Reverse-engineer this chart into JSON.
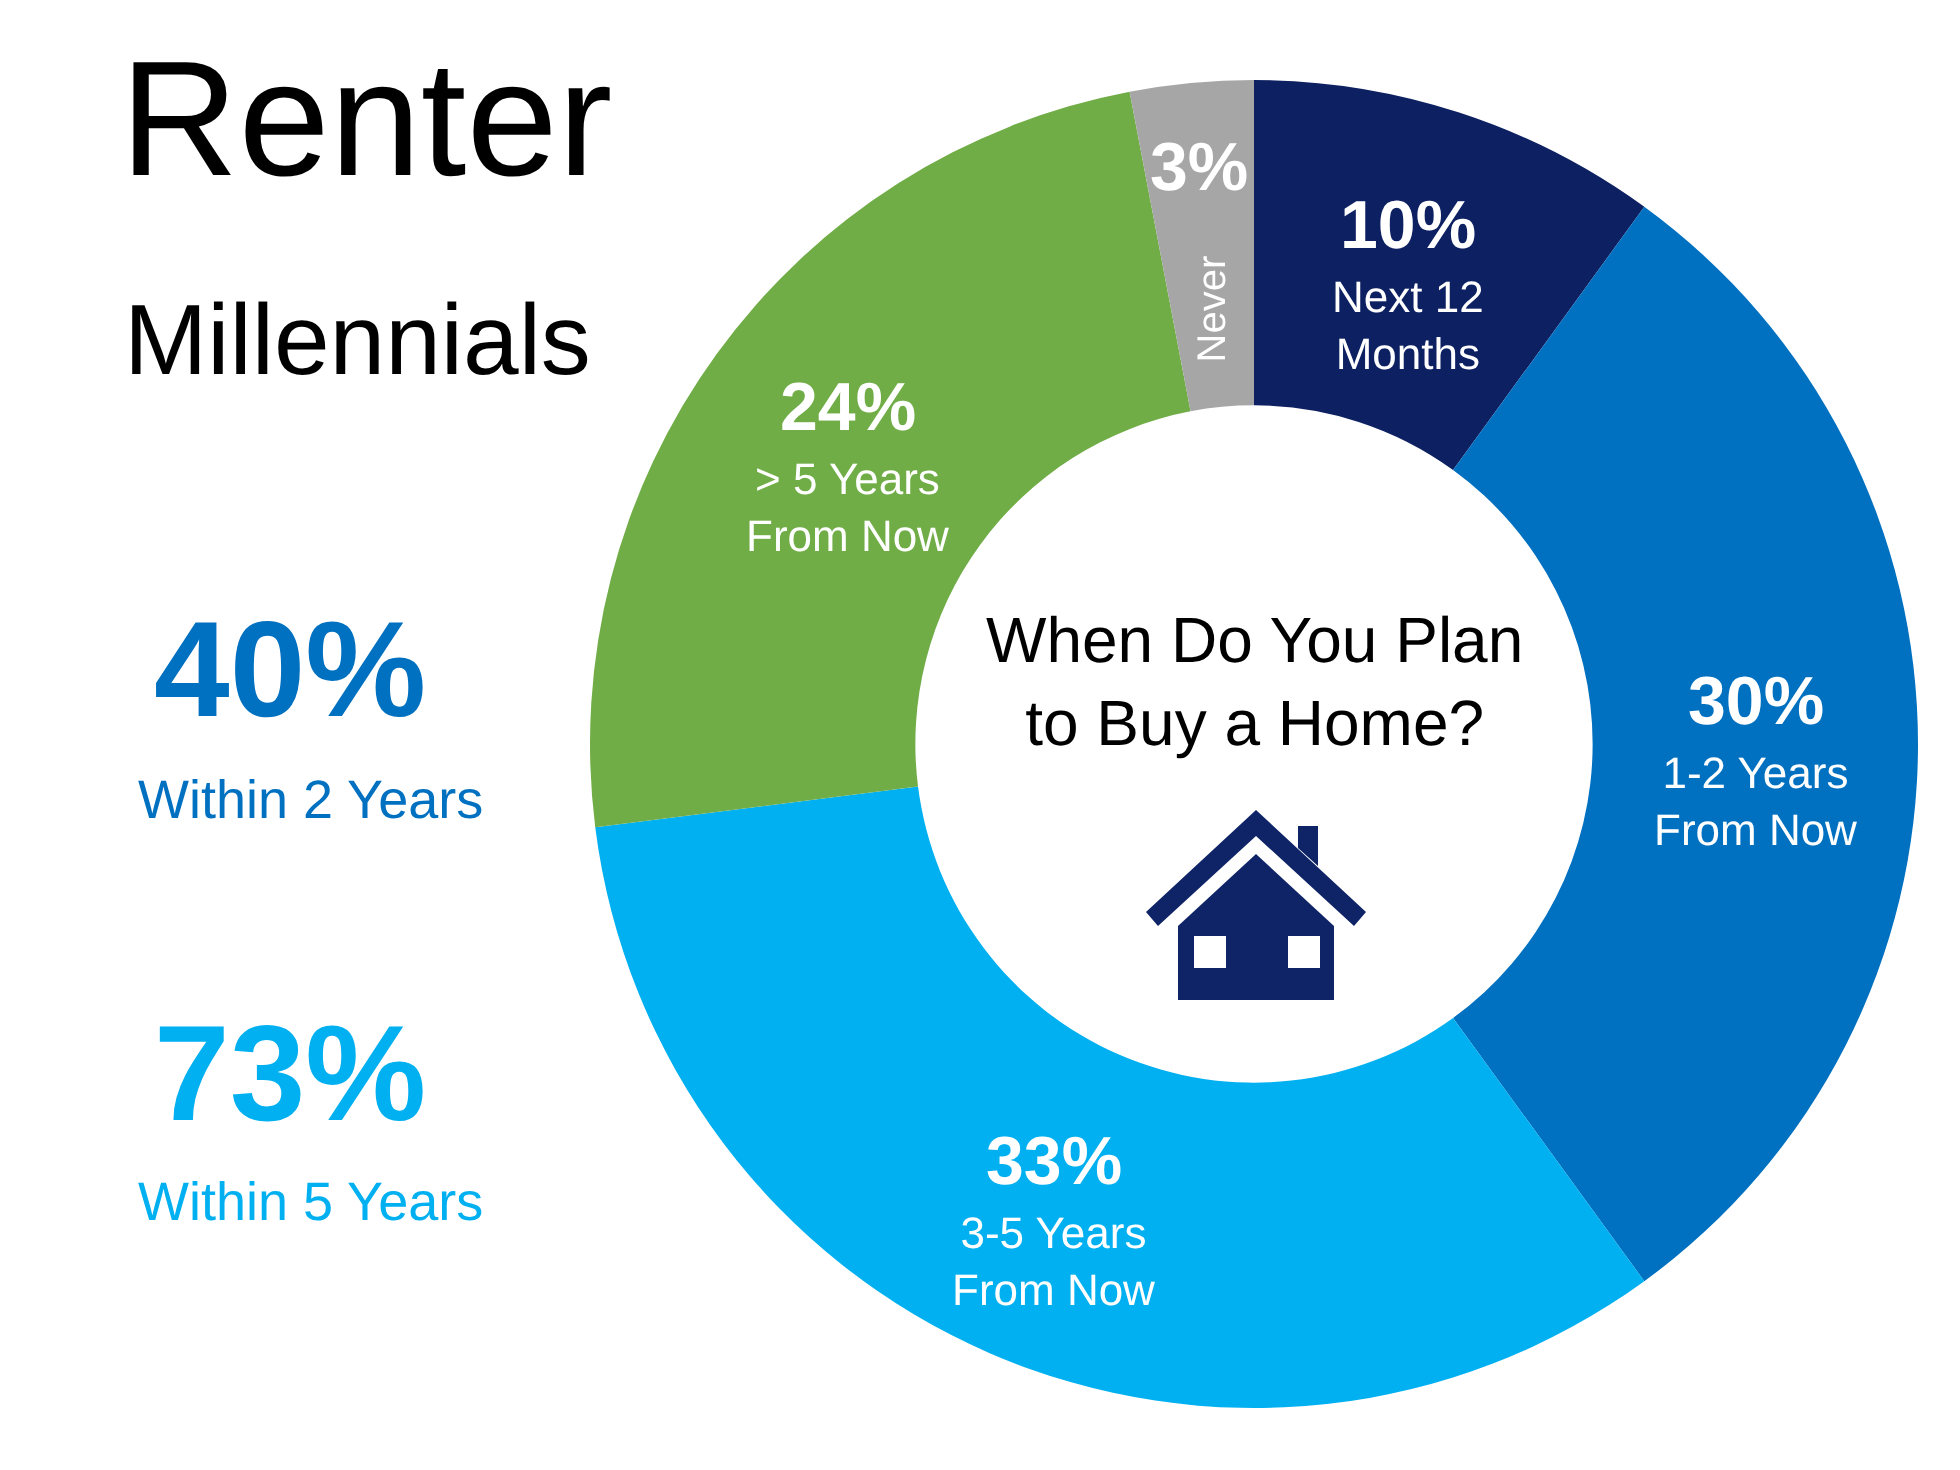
{
  "chart_data": {
    "type": "donut",
    "title": "Renter",
    "subtitle": "Millennials",
    "categories": [
      "Next 12 Months",
      "1-2 Years From Now",
      "3-5 Years From Now",
      "> 5 Years From Now",
      "Never"
    ],
    "values": [
      10,
      30,
      33,
      24,
      3
    ],
    "value_labels": [
      "10%",
      "30%",
      "33%",
      "24%",
      "3%"
    ],
    "colors": [
      "#0d2061",
      "#0070c0",
      "#00b0f0",
      "#70ad47",
      "#a6a6a6"
    ],
    "annotations": [
      "40%",
      "Within 2 Years",
      "73%",
      "Within 5 Years",
      "When Do You Plan to Buy a Home?"
    ]
  }
}
